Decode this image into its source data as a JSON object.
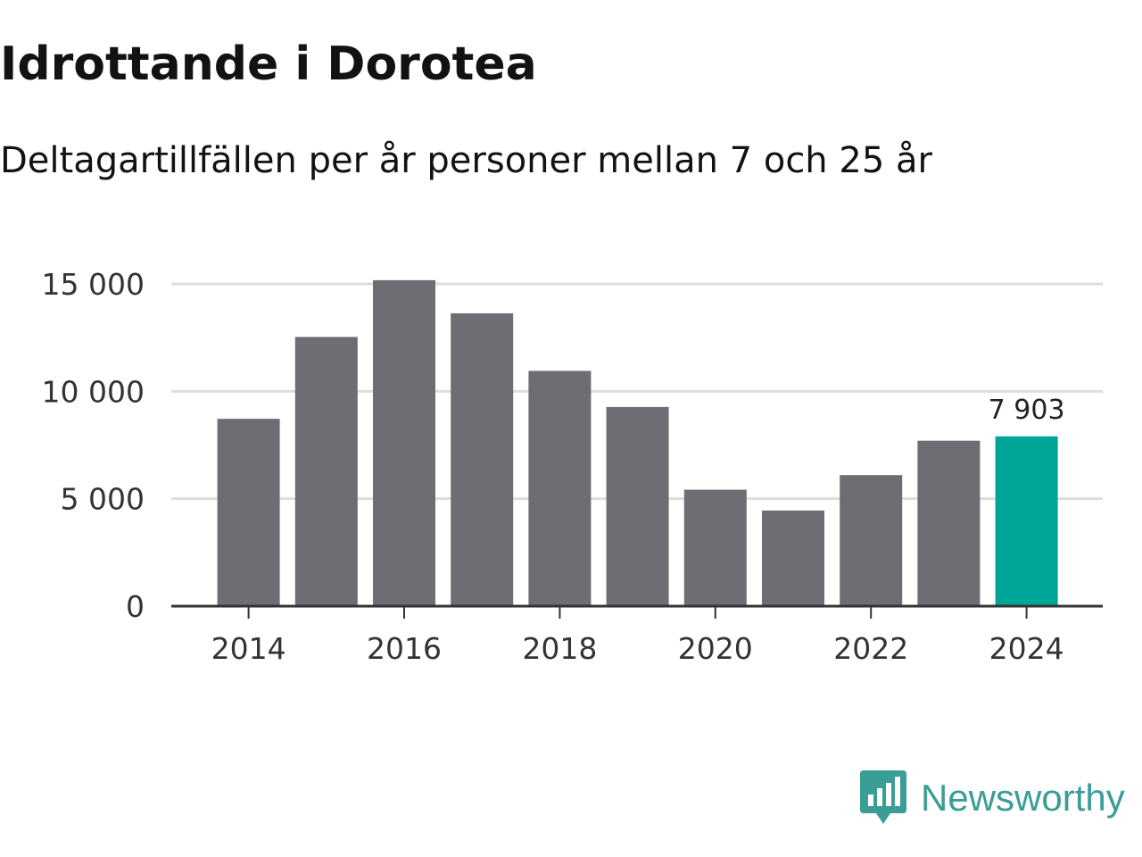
{
  "header": {
    "title": "Idrottande i Dorotea",
    "subtitle": "Deltagartillfällen per år personer mellan 7 och 25 år"
  },
  "brand": {
    "name": "Newsworthy",
    "icon": "newsworthy-logo-icon",
    "color": "#3a9d96"
  },
  "colors": {
    "bar": "#6e6d73",
    "highlight": "#00a59a",
    "grid": "#dddddd",
    "axis": "#333333"
  },
  "chart_data": {
    "type": "bar",
    "title": "Idrottande i Dorotea",
    "subtitle": "Deltagartillfällen per år personer mellan 7 och 25 år",
    "xlabel": "",
    "ylabel": "",
    "categories": [
      "2014",
      "2015",
      "2016",
      "2017",
      "2018",
      "2019",
      "2020",
      "2021",
      "2022",
      "2023",
      "2024"
    ],
    "values": [
      8720,
      12530,
      15170,
      13630,
      10950,
      9270,
      5420,
      4450,
      6100,
      7700,
      7903
    ],
    "highlight_index": 10,
    "ylim": [
      0,
      15000
    ],
    "yticks": [
      0,
      5000,
      10000,
      15000
    ],
    "ytick_labels": [
      "0",
      "5 000",
      "10 000",
      "15 000"
    ],
    "xticks": [
      "2014",
      "2016",
      "2018",
      "2020",
      "2022",
      "2024"
    ],
    "annotations": [
      {
        "category": "2024",
        "label": "7 903"
      }
    ],
    "grid": true,
    "legend": "none"
  }
}
